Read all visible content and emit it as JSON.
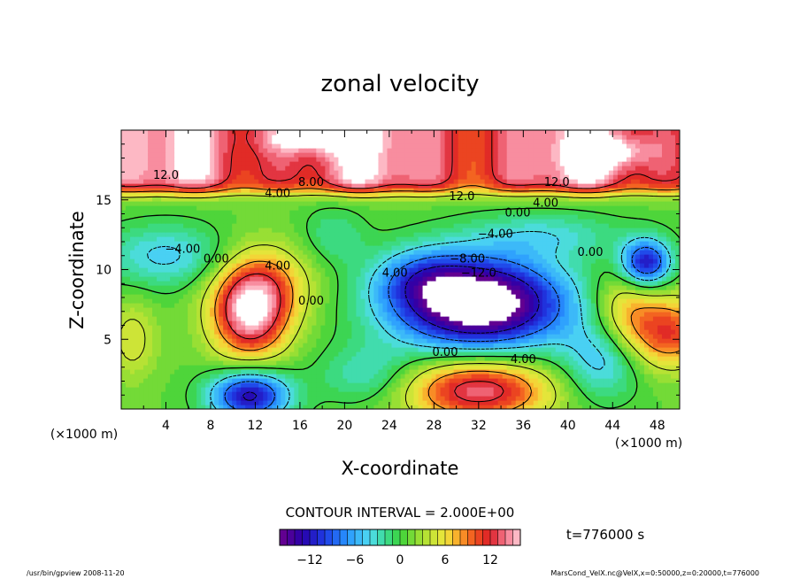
{
  "chart_data": {
    "type": "heatmap",
    "title": "zonal velocity",
    "xlabel": "X-coordinate",
    "ylabel": "Z-coordinate",
    "x_unit": "(×1000 m)",
    "y_unit": "(×1000 m)",
    "xlim": [
      0,
      50
    ],
    "ylim": [
      0,
      20
    ],
    "x_ticks": [
      4,
      8,
      12,
      16,
      20,
      24,
      28,
      32,
      36,
      40,
      44,
      48
    ],
    "y_ticks": [
      5,
      10,
      15
    ],
    "contour_interval_text": "CONTOUR INTERVAL = 2.000E+00",
    "time_text": "t=776000 s",
    "colorbar": {
      "range": [
        -16,
        16
      ],
      "ticks": [
        -12,
        -6,
        0,
        6,
        12
      ],
      "tick_labels": [
        "−12",
        "−6",
        "0",
        "6",
        "12"
      ]
    },
    "contour_labels": [
      {
        "text": "12.0",
        "x": 4.0,
        "y": 16.5
      },
      {
        "text": "8.00",
        "x": 17.0,
        "y": 16.0
      },
      {
        "text": "4.00",
        "x": 14.0,
        "y": 15.2
      },
      {
        "text": "12.0",
        "x": 30.5,
        "y": 15.0
      },
      {
        "text": "12.0",
        "x": 39.0,
        "y": 16.0
      },
      {
        "text": "4.00",
        "x": 38.0,
        "y": 14.5
      },
      {
        "text": "0.00",
        "x": 35.5,
        "y": 13.8
      },
      {
        "text": "−4.00",
        "x": 5.5,
        "y": 11.2
      },
      {
        "text": "0.00",
        "x": 8.5,
        "y": 10.5
      },
      {
        "text": "4.00",
        "x": 14.0,
        "y": 10.0
      },
      {
        "text": "−4.00",
        "x": 33.5,
        "y": 12.3
      },
      {
        "text": "−8.00",
        "x": 31.0,
        "y": 10.5
      },
      {
        "text": "−12.0",
        "x": 32.0,
        "y": 9.5
      },
      {
        "text": "4.00",
        "x": 24.5,
        "y": 9.5
      },
      {
        "text": "0.00",
        "x": 42.0,
        "y": 11.0
      },
      {
        "text": "0.00",
        "x": 17.0,
        "y": 7.5
      },
      {
        "text": "0.00",
        "x": 29.0,
        "y": 3.8
      },
      {
        "text": "4.00",
        "x": 36.0,
        "y": 3.3
      }
    ],
    "features": [
      {
        "kind": "jet",
        "note": "strong positive layer near top",
        "value": 14
      },
      {
        "kind": "max",
        "x": 11.5,
        "y": 6.8,
        "value": 14
      },
      {
        "kind": "min",
        "x": 32.0,
        "y": 7.5,
        "value": -16
      },
      {
        "kind": "min",
        "x": 47.0,
        "y": 10.5,
        "value": -12
      },
      {
        "kind": "min",
        "x": 11.5,
        "y": 1.0,
        "value": -12
      },
      {
        "kind": "max",
        "x": 32.0,
        "y": 1.5,
        "value": 14
      },
      {
        "kind": "max",
        "x": 48.5,
        "y": 5.5,
        "value": 10
      }
    ]
  },
  "footer": {
    "left": "/usr/bin/gpview   2008-11-20",
    "right": "MarsCond_VelX.nc@VelX,x=0:50000,z=0:20000,t=776000"
  }
}
